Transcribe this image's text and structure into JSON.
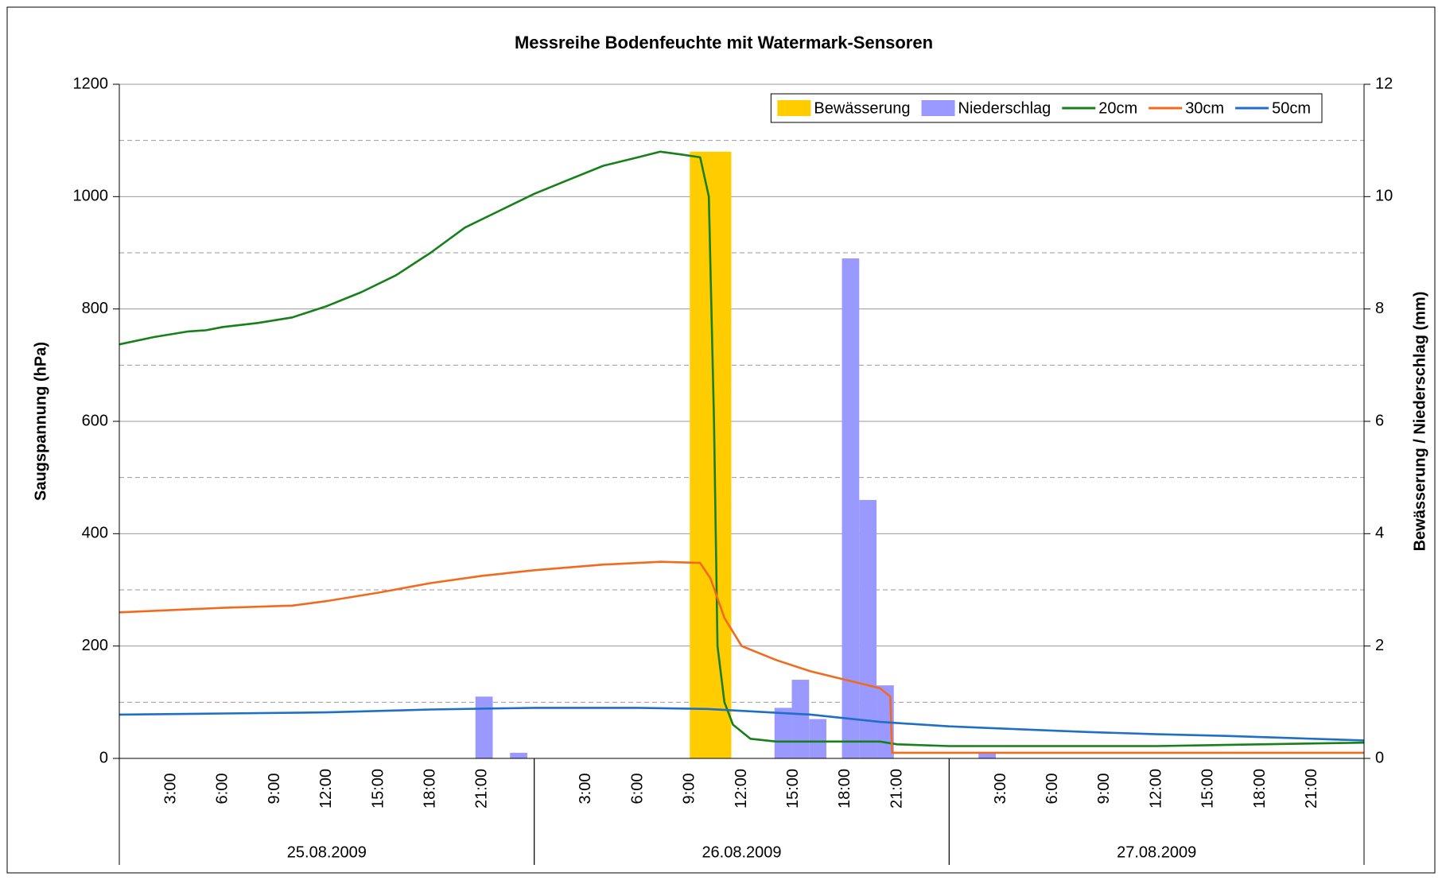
{
  "chart_data": {
    "type": "combo",
    "title": "Messreihe Bodenfeuchte mit Watermark-Sensoren",
    "ylabel": "Saugspannung (hPa)",
    "y2label": "Bewässerung / Niederschlag (mm)",
    "xlim": [
      0,
      72
    ],
    "ylim": [
      0,
      1200
    ],
    "yticks": [
      0,
      200,
      400,
      600,
      800,
      1000,
      1200
    ],
    "y2lim": [
      0,
      12
    ],
    "y2ticks": [
      0,
      2,
      4,
      6,
      8,
      10,
      12
    ],
    "y2gridlines": [
      1,
      3,
      5,
      7,
      9,
      11
    ],
    "xticks": [
      {
        "value": 3,
        "label": "3:00"
      },
      {
        "value": 6,
        "label": "6:00"
      },
      {
        "value": 9,
        "label": "9:00"
      },
      {
        "value": 12,
        "label": "12:00"
      },
      {
        "value": 15,
        "label": "15:00"
      },
      {
        "value": 18,
        "label": "18:00"
      },
      {
        "value": 21,
        "label": "21:00"
      },
      {
        "value": 27,
        "label": "3:00"
      },
      {
        "value": 30,
        "label": "6:00"
      },
      {
        "value": 33,
        "label": "9:00"
      },
      {
        "value": 36,
        "label": "12:00"
      },
      {
        "value": 39,
        "label": "15:00"
      },
      {
        "value": 42,
        "label": "18:00"
      },
      {
        "value": 45,
        "label": "21:00"
      },
      {
        "value": 51,
        "label": "3:00"
      },
      {
        "value": 54,
        "label": "6:00"
      },
      {
        "value": 57,
        "label": "9:00"
      },
      {
        "value": 60,
        "label": "12:00"
      },
      {
        "value": 63,
        "label": "15:00"
      },
      {
        "value": 66,
        "label": "18:00"
      },
      {
        "value": 69,
        "label": "21:00"
      }
    ],
    "days": [
      {
        "label": "25.08.2009",
        "start": 0,
        "end": 24
      },
      {
        "label": "26.08.2009",
        "start": 24,
        "end": 48
      },
      {
        "label": "27.08.2009",
        "start": 48,
        "end": 72
      }
    ],
    "legend": "top-right",
    "series": [
      {
        "name": "Bewässerung",
        "kind": "bar",
        "axis": "y2",
        "color": "#ffcc00",
        "width": 2.4,
        "x": [
          33
        ],
        "values": [
          10.8
        ]
      },
      {
        "name": "Niederschlag",
        "kind": "bar",
        "axis": "y2",
        "color": "#9999ff",
        "width": 1,
        "x": [
          20.6,
          22.6,
          37.9,
          38.9,
          39.9,
          41.8,
          42.8,
          43.8,
          49.7
        ],
        "values": [
          1.1,
          0.1,
          0.9,
          1.4,
          0.7,
          8.9,
          4.6,
          1.3,
          0.1
        ]
      },
      {
        "name": "20cm",
        "kind": "line",
        "color": "#17801a",
        "x": [
          0,
          2,
          4,
          5,
          6,
          8,
          10,
          12,
          14,
          16,
          18,
          20,
          22,
          24,
          26,
          28,
          30,
          31.3,
          32.5,
          33.6,
          34.1,
          34.4,
          34.6,
          35,
          35.5,
          36.5,
          38,
          42,
          44,
          45,
          48,
          60,
          66,
          72
        ],
        "values": [
          737,
          750,
          760,
          762,
          768,
          775,
          785,
          805,
          830,
          860,
          900,
          945,
          975,
          1005,
          1030,
          1055,
          1070,
          1080,
          1075,
          1070,
          1000,
          600,
          200,
          100,
          60,
          35,
          30,
          30,
          30,
          25,
          22,
          22,
          25,
          28
        ]
      },
      {
        "name": "30cm",
        "kind": "line",
        "color": "#f26b1d",
        "x": [
          0,
          6,
          10,
          12,
          15,
          18,
          21,
          24,
          28,
          31.3,
          33.6,
          34.2,
          35,
          36,
          38,
          40,
          42,
          44,
          44.6,
          44.7,
          72
        ],
        "values": [
          260,
          268,
          272,
          280,
          295,
          312,
          325,
          335,
          345,
          350,
          348,
          320,
          250,
          200,
          175,
          155,
          140,
          125,
          110,
          10,
          10
        ]
      },
      {
        "name": "50cm",
        "kind": "line",
        "color": "#1f6fc4",
        "x": [
          0,
          6,
          12,
          18,
          24,
          30,
          34,
          40,
          44,
          48,
          52,
          56,
          60,
          64,
          68,
          72
        ],
        "values": [
          78,
          80,
          82,
          87,
          90,
          90,
          88,
          78,
          65,
          57,
          52,
          47,
          43,
          40,
          36,
          32
        ]
      }
    ]
  }
}
